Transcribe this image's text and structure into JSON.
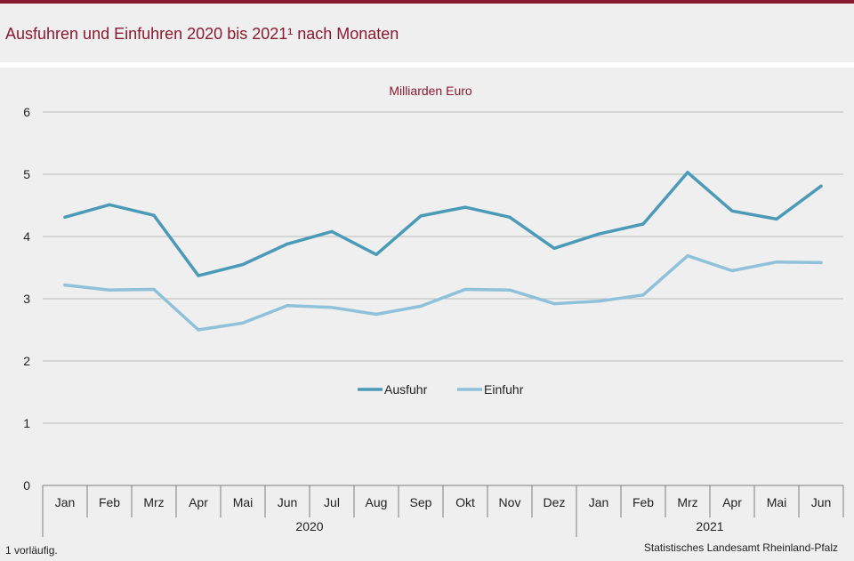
{
  "title": "Ausfuhren und Einfuhren 2020 bis 2021¹ nach Monaten",
  "footnote": "1 vorläufig.",
  "source": "Statistisches Landesamt Rheinland-Pfalz",
  "colors": {
    "accent": "#8b1a30",
    "ausfuhr": "#4a9ab8",
    "einfuhr": "#8fc1da"
  },
  "chart_data": {
    "type": "line",
    "title": "",
    "unit_label": "Milliarden Euro",
    "xlabel": "",
    "ylabel": "",
    "ylim": [
      0,
      6
    ],
    "yticks": [
      0,
      1,
      2,
      3,
      4,
      5,
      6
    ],
    "grid": true,
    "legend_position": "center",
    "categories": [
      "Jan",
      "Feb",
      "Mrz",
      "Apr",
      "Mai",
      "Jun",
      "Jul",
      "Aug",
      "Sep",
      "Okt",
      "Nov",
      "Dez",
      "Jan",
      "Feb",
      "Mrz",
      "Apr",
      "Mai",
      "Jun"
    ],
    "year_groups": [
      {
        "label": "2020",
        "count": 12
      },
      {
        "label": "2021",
        "count": 6
      }
    ],
    "series": [
      {
        "name": "Ausfuhr",
        "values": [
          4.31,
          4.51,
          4.34,
          3.37,
          3.55,
          3.88,
          4.08,
          3.71,
          4.33,
          4.47,
          4.31,
          3.81,
          4.04,
          4.2,
          5.03,
          4.41,
          4.28,
          4.81
        ]
      },
      {
        "name": "Einfuhr",
        "values": [
          3.22,
          3.14,
          3.15,
          2.5,
          2.61,
          2.89,
          2.86,
          2.75,
          2.88,
          3.15,
          3.14,
          2.92,
          2.96,
          3.06,
          3.69,
          3.45,
          3.59,
          3.58
        ]
      }
    ]
  }
}
